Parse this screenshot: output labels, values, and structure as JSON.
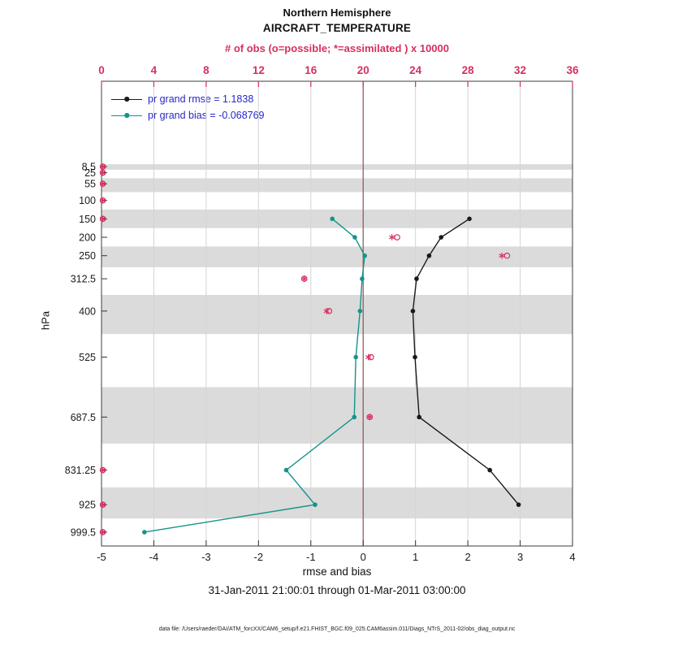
{
  "title": {
    "line1": "Northern Hemisphere",
    "line2": "AIRCRAFT_TEMPERATURE"
  },
  "top_axis_label": "# of obs (o=possible; *=assimilated ) x 10000",
  "legend": [
    {
      "label": "pr grand rmse = 1.1838",
      "color": "#1a1a1a"
    },
    {
      "label": "pr grand bias = -0.068769",
      "color": "#13948a"
    }
  ],
  "ylabel": "hPa",
  "xlabel": "rmse and bias",
  "subtitle": "31-Jan-2011 21:00:01 through 01-Mar-2011 03:00:00",
  "footer": "data file: /Users/raeder/DAI/ATM_forcXX/CAM6_setup/f.e21.FHIST_BGC.f09_025.CAM6assim.011/Diags_NTrS_2011-02/obs_diag_output.nc",
  "colors": {
    "accent_pink": "#d7305e",
    "teal": "#13948a",
    "black_series": "#1a1a1a",
    "zero_line": "#8f5050",
    "band": "#dbdbdb",
    "grid": "#d4d4d4",
    "axis": "#3c3c3c",
    "legend_text": "#2727c8",
    "text": "#1a1a1a"
  },
  "chart_data": {
    "type": "line",
    "title": "Northern Hemisphere AIRCRAFT_TEMPERATURE",
    "grand_rmse": 1.1838,
    "grand_bias": -0.068769,
    "x_bottom": {
      "label": "rmse and bias",
      "min": -5,
      "max": 4,
      "ticks": [
        -5,
        -4,
        -3,
        -2,
        -1,
        0,
        1,
        2,
        3,
        4
      ]
    },
    "x_top": {
      "label": "# of obs (o=possible; *=assimilated ) x 10000",
      "min": 0,
      "max": 36,
      "ticks": [
        0,
        4,
        8,
        12,
        16,
        20,
        24,
        28,
        32,
        36
      ],
      "units": "x 10000"
    },
    "y_axis": {
      "label": "hPa",
      "direction": "down",
      "range": [
        -223,
        1037
      ],
      "levels": [
        8.5,
        25,
        55,
        100,
        150,
        200,
        250,
        312.5,
        400,
        525,
        687.5,
        831.25,
        925,
        999.5
      ]
    },
    "zero_reference_x": 0,
    "shaded_bands": [
      [
        2,
        16.75
      ],
      [
        40,
        77.5
      ],
      [
        125,
        175
      ],
      [
        225,
        281.25
      ],
      [
        356.25,
        462.5
      ],
      [
        606.25,
        759.4
      ],
      [
        878.1,
        962.3
      ]
    ],
    "series": [
      {
        "name": "pr grand rmse",
        "color": "#1a1a1a",
        "marker": "dot",
        "points": [
          {
            "p": 150,
            "v": 2.03
          },
          {
            "p": 200,
            "v": 1.49
          },
          {
            "p": 250,
            "v": 1.26
          },
          {
            "p": 312.5,
            "v": 1.02
          },
          {
            "p": 400,
            "v": 0.95
          },
          {
            "p": 525,
            "v": 0.99
          },
          {
            "p": 687.5,
            "v": 1.07
          },
          {
            "p": 831.25,
            "v": 2.42
          },
          {
            "p": 925,
            "v": 2.97
          }
        ]
      },
      {
        "name": "pr grand bias",
        "color": "#13948a",
        "marker": "dot",
        "points": [
          {
            "p": 150,
            "v": -0.59
          },
          {
            "p": 200,
            "v": -0.16
          },
          {
            "p": 250,
            "v": 0.03
          },
          {
            "p": 312.5,
            "v": -0.02
          },
          {
            "p": 400,
            "v": -0.06
          },
          {
            "p": 525,
            "v": -0.14
          },
          {
            "p": 687.5,
            "v": -0.17
          },
          {
            "p": 831.25,
            "v": -1.47
          },
          {
            "p": 925,
            "v": -0.92
          },
          {
            "p": 999.5,
            "v": -4.18
          }
        ]
      }
    ],
    "obs_counts": {
      "scale": "x_top",
      "possible": [
        {
          "p": 8.5,
          "v": 0.1
        },
        {
          "p": 25,
          "v": 0.1
        },
        {
          "p": 55,
          "v": 0.1
        },
        {
          "p": 100,
          "v": 0.1
        },
        {
          "p": 150,
          "v": 0.1
        },
        {
          "p": 200,
          "v": 22.6
        },
        {
          "p": 250,
          "v": 31.0
        },
        {
          "p": 312.5,
          "v": 15.5
        },
        {
          "p": 400,
          "v": 17.4
        },
        {
          "p": 525,
          "v": 20.6
        },
        {
          "p": 687.5,
          "v": 20.5
        },
        {
          "p": 831.25,
          "v": 0.1
        },
        {
          "p": 925,
          "v": 0.1
        },
        {
          "p": 999.5,
          "v": 0.1
        }
      ],
      "assimilated": [
        {
          "p": 8.5,
          "v": 0.1
        },
        {
          "p": 25,
          "v": 0.1
        },
        {
          "p": 55,
          "v": 0.1
        },
        {
          "p": 100,
          "v": 0.1
        },
        {
          "p": 150,
          "v": 0.1
        },
        {
          "p": 200,
          "v": 22.2
        },
        {
          "p": 250,
          "v": 30.6
        },
        {
          "p": 312.5,
          "v": 15.5
        },
        {
          "p": 400,
          "v": 17.2
        },
        {
          "p": 525,
          "v": 20.4
        },
        {
          "p": 687.5,
          "v": 20.5
        },
        {
          "p": 831.25,
          "v": 0.1
        },
        {
          "p": 925,
          "v": 0.1
        },
        {
          "p": 999.5,
          "v": 0.1
        }
      ]
    }
  }
}
